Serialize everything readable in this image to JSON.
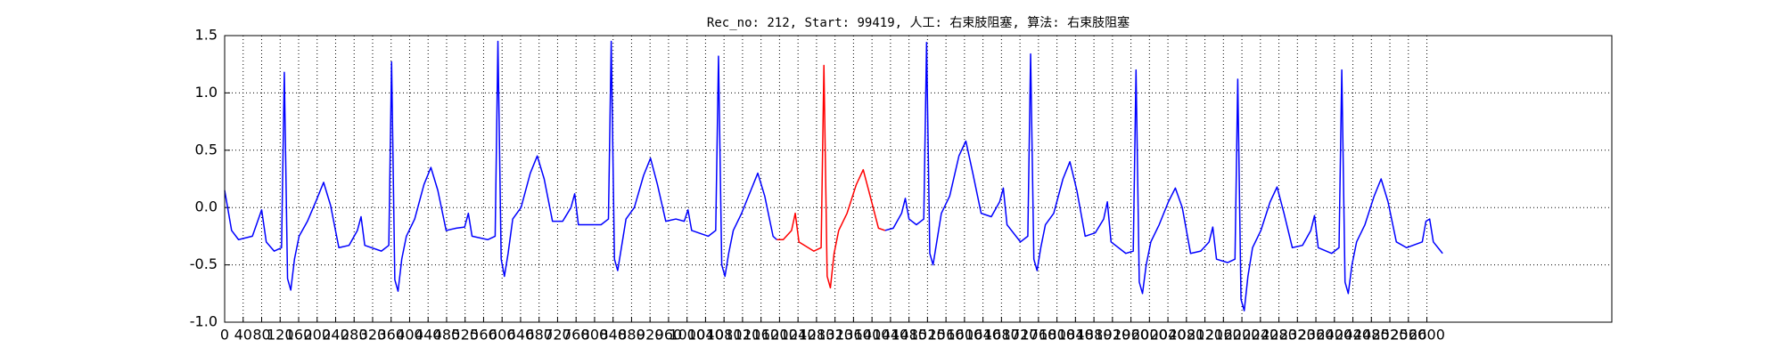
{
  "chart_data": {
    "type": "line",
    "title": "Rec_no: 212, Start: 99419, 人工: 右束肢阻塞, 算法: 右束肢阻塞",
    "xlim": [
      0,
      3000
    ],
    "ylim": [
      -1.0,
      1.5
    ],
    "xticks": [
      0,
      40,
      80,
      120,
      160,
      200,
      240,
      280,
      320,
      360,
      400,
      440,
      480,
      520,
      560,
      600,
      640,
      680,
      720,
      760,
      800,
      840,
      880,
      920,
      960,
      1000,
      1040,
      1080,
      1120,
      1160,
      1200,
      1240,
      1280,
      1320,
      1360,
      1400,
      1440,
      1480,
      1520,
      1560,
      1600,
      1640,
      1680,
      1720,
      1760,
      1800,
      1840,
      1880,
      1920,
      1960,
      2000,
      2040,
      2080,
      2120,
      2160,
      2200,
      2240,
      2280,
      2320,
      2360,
      2400,
      2440,
      2480,
      2520,
      2560,
      2600
    ],
    "yticks": [
      {
        "value": -1.0,
        "label": "-1.0"
      },
      -0.5,
      {
        "value": 0,
        "label": "0.0"
      },
      0.5,
      {
        "value": 1.0,
        "label": "1.0"
      },
      1.5
    ],
    "grid": true,
    "series": [
      {
        "color": "#0000ff",
        "x": [
          0,
          15,
          30,
          60,
          80,
          90,
          107,
          123,
          129,
          136,
          143,
          151,
          161,
          179,
          199,
          214,
          229,
          247,
          269,
          287,
          295,
          303,
          339,
          355,
          361,
          368,
          375,
          383,
          393,
          411,
          431,
          446,
          461,
          479,
          501,
          519,
          527,
          535,
          569,
          585,
          591,
          598,
          605,
          613,
          623,
          641,
          661,
          676,
          691,
          709,
          731,
          749,
          757,
          765,
          814,
          830,
          836,
          843,
          850,
          858,
          868,
          886,
          906,
          921,
          936,
          954,
          976,
          994,
          1002,
          1010,
          1046,
          1062,
          1068,
          1075,
          1082,
          1090,
          1100,
          1118,
          1138,
          1153,
          1168,
          1186,
          1194,
          1300,
          1428,
          1446,
          1464,
          1472,
          1480,
          1496,
          1512,
          1518,
          1525,
          1532,
          1540,
          1550,
          1568,
          1588,
          1603,
          1618,
          1636,
          1658,
          1676,
          1684,
          1692,
          1721,
          1737,
          1743,
          1750,
          1757,
          1765,
          1775,
          1793,
          1813,
          1828,
          1843,
          1861,
          1883,
          1901,
          1909,
          1917,
          1949,
          1965,
          1971,
          1978,
          1985,
          1993,
          2003,
          2021,
          2041,
          2056,
          2071,
          2089,
          2111,
          2129,
          2137,
          2145,
          2169,
          2185,
          2191,
          2198,
          2205,
          2213,
          2223,
          2241,
          2261,
          2276,
          2291,
          2309,
          2331,
          2349,
          2357,
          2365,
          2394,
          2410,
          2416,
          2423,
          2430,
          2438,
          2448,
          2466,
          2486,
          2501,
          2516,
          2534,
          2556,
          2590,
          2598,
          2606,
          2614,
          2634
        ],
        "values": [
          0.15,
          -0.2,
          -0.28,
          -0.25,
          -0.02,
          -0.3,
          -0.38,
          -0.35,
          1.18,
          -0.62,
          -0.72,
          -0.45,
          -0.25,
          -0.12,
          0.07,
          0.22,
          0.02,
          -0.35,
          -0.33,
          -0.2,
          -0.08,
          -0.33,
          -0.38,
          -0.33,
          1.27,
          -0.63,
          -0.73,
          -0.45,
          -0.25,
          -0.1,
          0.2,
          0.35,
          0.15,
          -0.2,
          -0.18,
          -0.17,
          -0.05,
          -0.25,
          -0.28,
          -0.25,
          1.45,
          -0.45,
          -0.6,
          -0.4,
          -0.1,
          0.0,
          0.3,
          0.45,
          0.25,
          -0.12,
          -0.12,
          0.0,
          0.12,
          -0.15,
          -0.15,
          -0.1,
          1.45,
          -0.45,
          -0.55,
          -0.35,
          -0.1,
          0.0,
          0.28,
          0.43,
          0.2,
          -0.12,
          -0.1,
          -0.12,
          -0.02,
          -0.2,
          -0.25,
          -0.2,
          1.32,
          -0.5,
          -0.6,
          -0.4,
          -0.2,
          -0.05,
          0.15,
          0.3,
          0.1,
          -0.25,
          -0.28,
          null,
          -0.2,
          -0.18,
          -0.05,
          0.08,
          -0.1,
          -0.15,
          -0.1,
          1.44,
          -0.4,
          -0.5,
          -0.3,
          -0.05,
          0.1,
          0.45,
          0.58,
          0.3,
          -0.05,
          -0.08,
          0.05,
          0.17,
          -0.15,
          -0.3,
          -0.25,
          1.34,
          -0.45,
          -0.55,
          -0.35,
          -0.15,
          -0.05,
          0.25,
          0.4,
          0.15,
          -0.25,
          -0.22,
          -0.1,
          0.05,
          -0.3,
          -0.4,
          -0.38,
          1.2,
          -0.65,
          -0.75,
          -0.5,
          -0.3,
          -0.15,
          0.05,
          0.17,
          0.0,
          -0.4,
          -0.38,
          -0.3,
          -0.17,
          -0.45,
          -0.48,
          -0.45,
          1.12,
          -0.8,
          -0.9,
          -0.6,
          -0.35,
          -0.2,
          0.05,
          0.18,
          -0.05,
          -0.35,
          -0.33,
          -0.2,
          -0.07,
          -0.35,
          -0.4,
          -0.35,
          1.2,
          -0.65,
          -0.75,
          -0.5,
          -0.3,
          -0.15,
          0.1,
          0.25,
          0.05,
          -0.3,
          -0.35,
          -0.3,
          -0.12,
          -0.1,
          -0.3,
          -0.4
        ]
      },
      {
        "color": "#ff0000",
        "x": [
          1194,
          1208,
          1226,
          1234,
          1242,
          1274,
          1290,
          1296,
          1303,
          1310,
          1318,
          1328,
          1346,
          1366,
          1381,
          1396,
          1414,
          1428
        ],
        "values": [
          -0.28,
          -0.28,
          -0.2,
          -0.05,
          -0.3,
          -0.38,
          -0.35,
          1.24,
          -0.6,
          -0.7,
          -0.4,
          -0.2,
          -0.05,
          0.2,
          0.33,
          0.1,
          -0.18,
          -0.2
        ]
      }
    ]
  }
}
